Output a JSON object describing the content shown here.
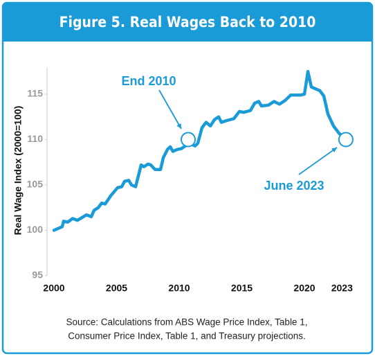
{
  "chart_data": {
    "type": "line",
    "title": "Figure 5. Real Wages Back to 2010",
    "y_label": "Real Wage Index (2000=100)",
    "source": [
      "Source: Calculations from ABS Wage Price Index, Table 1,",
      "Consumer Price Index, Table 1, and Treasury projections."
    ],
    "x": [
      2000,
      2000.66,
      2000.77,
      2001.1,
      2001.49,
      2001.88,
      2002.6,
      2002.98,
      2003.2,
      2003.54,
      2003.81,
      2004.09,
      2004.53,
      2005.08,
      2005.41,
      2005.64,
      2005.97,
      2006.19,
      2006.52,
      2006.96,
      2007.18,
      2007.51,
      2007.73,
      2008.07,
      2008.51,
      2008.73,
      2009.06,
      2009.28,
      2009.5,
      2009.83,
      2010.17,
      2010.5,
      2010.94,
      2011.27,
      2011.49,
      2011.82,
      2012.15,
      2012.49,
      2012.82,
      2013.15,
      2013.37,
      2013.81,
      2014.36,
      2014.81,
      2015.14,
      2015.69,
      2016.02,
      2016.35,
      2016.57,
      2017.13,
      2017.57,
      2018.01,
      2018.45,
      2018.9,
      2019.34,
      2019.67,
      2020.0,
      2020.28,
      2020.55,
      2020.88,
      2021.22,
      2021.55,
      2021.88,
      2022.32,
      2022.76,
      2023.31
    ],
    "values": [
      100.0,
      100.4,
      101.0,
      100.9,
      101.3,
      101.1,
      101.7,
      101.5,
      102.2,
      102.5,
      103.0,
      102.9,
      103.8,
      104.7,
      104.8,
      105.4,
      105.5,
      105.0,
      104.8,
      107.2,
      107.0,
      107.3,
      107.2,
      106.7,
      106.7,
      108.0,
      108.9,
      109.2,
      108.7,
      108.9,
      109.0,
      109.3,
      109.5,
      109.3,
      109.6,
      111.3,
      111.9,
      111.5,
      112.2,
      112.5,
      111.9,
      112.1,
      112.3,
      113.1,
      113.0,
      113.2,
      114.0,
      114.2,
      113.7,
      113.8,
      114.2,
      113.9,
      114.3,
      114.9,
      114.9,
      114.9,
      115.0,
      117.5,
      115.8,
      115.6,
      115.4,
      114.8,
      112.8,
      111.5,
      110.7,
      110.0
    ],
    "color": "#1a9ad6",
    "xlim": [
      2000,
      2023.5
    ],
    "xticks": [
      2000,
      2005,
      2010,
      2015,
      2020,
      2023
    ],
    "ylim": [
      95,
      118
    ],
    "yticks": [
      95,
      100,
      105,
      110,
      115
    ],
    "grid": false,
    "annotations": [
      {
        "text": "End 2010",
        "x": 2010.72,
        "y": 110
      },
      {
        "text": "June 2023",
        "x": 2023.31,
        "y": 110
      }
    ]
  }
}
